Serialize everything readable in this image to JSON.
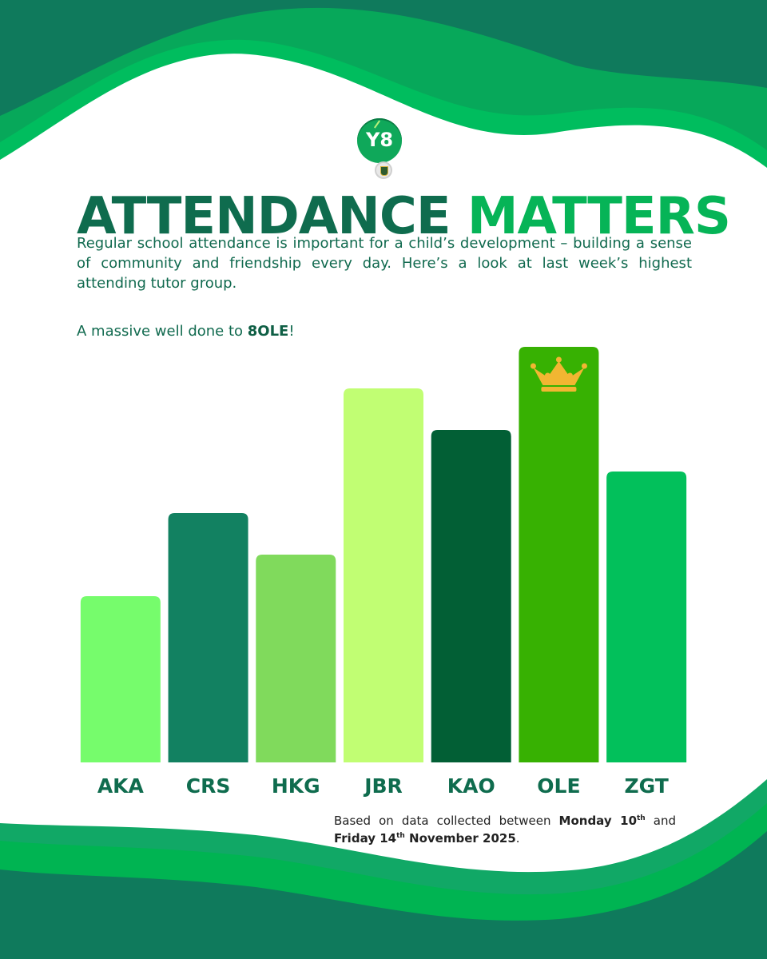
{
  "header": {
    "badge_text": "Y8",
    "title_main": "ATTENDANCE",
    "title_accent": "MATTERS",
    "intro": "Regular school attendance is important for a child’s development – building a sense of community and friendship every day. Here’s a look at last week’s highest attending tutor group.",
    "well_done_prefix": "A massive well done to ",
    "well_done_group": "8OLE",
    "well_done_suffix": "!"
  },
  "footer": {
    "text_1": "Based on data collected between ",
    "day_1": "Monday 10",
    "sup_1": "th",
    "text_2": " and ",
    "day_2": "Friday 14",
    "sup_2": "th",
    "text_3": " November 2025",
    "text_4": "."
  },
  "colors": {
    "wave_dark": "#0f7a5c",
    "wave_bright": "#00b452",
    "title_dark": "#0f6c4e",
    "title_accent": "#06b457",
    "crown": "#f2b632"
  },
  "chart_data": {
    "type": "bar",
    "categories": [
      "AKA",
      "CRS",
      "HKG",
      "JBR",
      "KAO",
      "OLE",
      "ZGT"
    ],
    "values": [
      40,
      60,
      50,
      90,
      80,
      100,
      70
    ],
    "bar_colors": [
      "#76fc6c",
      "#128161",
      "#80da5c",
      "#c1fe73",
      "#025f35",
      "#37b102",
      "#02c05b"
    ],
    "highlight_category": "OLE",
    "highlight_icon": "crown-icon",
    "title": "",
    "xlabel": "",
    "ylabel": "",
    "ylim": [
      0,
      100
    ],
    "grid": false,
    "legend": false
  }
}
